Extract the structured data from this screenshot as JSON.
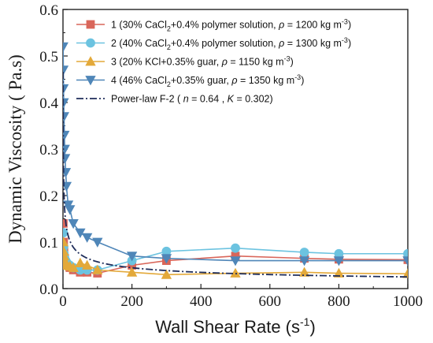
{
  "chart_data": {
    "type": "scatter",
    "xlabel": "Wall Shear Rate (s-1)",
    "xlabel_parts": {
      "main": "Wall Shear Rate (s",
      "sup": "-1",
      "close": ")"
    },
    "ylabel": "Dynamic Viscosity ( Pa.s)",
    "xlim": [
      0,
      1000
    ],
    "ylim": [
      0.0,
      0.6
    ],
    "xticks": [
      "0",
      "200",
      "400",
      "600",
      "800",
      "1000"
    ],
    "yticks": [
      "0.0",
      "0.1",
      "0.2",
      "0.3",
      "0.4",
      "0.5",
      "0.6"
    ],
    "legend_position": "top-right",
    "series": [
      {
        "name": "1 (30% CaCl2+0.4% polymer solution, ρ = 1200 kg m-3)",
        "legend_parts": {
          "pre": "1 (30% CaCl",
          "sub": "2",
          "mid": "+0.4% polymer solution, ",
          "rho": "ρ",
          "post": " = 1200 kg m",
          "sup": "-3",
          "close": ")"
        },
        "color": "#d9665a",
        "marker": "square",
        "x": [
          1,
          2,
          3,
          5,
          8,
          12,
          20,
          30,
          50,
          70,
          100,
          200,
          300,
          500,
          700,
          800,
          1000
        ],
        "y": [
          0.14,
          0.1,
          0.08,
          0.065,
          0.055,
          0.05,
          0.045,
          0.04,
          0.035,
          0.035,
          0.033,
          0.05,
          0.06,
          0.07,
          0.065,
          0.063,
          0.062
        ]
      },
      {
        "name": "2 (40% CaCl2+0.4% polymer solution, ρ = 1300 kg m-3)",
        "legend_parts": {
          "pre": "2 (40% CaCl",
          "sub": "2",
          "mid": "+0.4% polymer solution, ",
          "rho": "ρ",
          "post": " = 1300 kg m",
          "sup": "-3",
          "close": ")"
        },
        "color": "#6cc3e0",
        "marker": "circle",
        "x": [
          1,
          2,
          3,
          5,
          8,
          12,
          20,
          30,
          50,
          70,
          100,
          200,
          300,
          500,
          700,
          800,
          1000
        ],
        "y": [
          0.12,
          0.09,
          0.075,
          0.065,
          0.06,
          0.055,
          0.05,
          0.045,
          0.04,
          0.04,
          0.04,
          0.06,
          0.08,
          0.087,
          0.078,
          0.075,
          0.075
        ]
      },
      {
        "name": "3 (20% KCl+0.35% guar, ρ = 1150 kg m-3)",
        "legend_parts": {
          "pre": "3 (20% KCl+0.35% guar, ",
          "sub": "",
          "mid": "",
          "rho": "ρ",
          "post": " = 1150 kg m",
          "sup": "-3",
          "close": ")"
        },
        "color": "#e3a93a",
        "marker": "triangle-up",
        "x": [
          1,
          2,
          3,
          5,
          8,
          12,
          20,
          30,
          50,
          70,
          100,
          200,
          300,
          500,
          700,
          800,
          1000
        ],
        "y": [
          0.1,
          0.08,
          0.07,
          0.06,
          0.055,
          0.05,
          0.048,
          0.045,
          0.055,
          0.05,
          0.04,
          0.035,
          0.03,
          0.033,
          0.035,
          0.033,
          0.032
        ]
      },
      {
        "name": "4 (46% CaCl2+0.35% guar, ρ = 1350 kg m-3)",
        "legend_parts": {
          "pre": "4 (46% CaCl",
          "sub": "2",
          "mid": "+0.35% guar, ",
          "rho": "ρ",
          "post": " = 1350 kg m",
          "sup": "-3",
          "close": ")"
        },
        "color": "#4f86b8",
        "marker": "triangle-down",
        "x": [
          0.5,
          1,
          1.5,
          2,
          3,
          4,
          5,
          6,
          8,
          10,
          15,
          20,
          30,
          50,
          70,
          100,
          200,
          300,
          500,
          700,
          800,
          1000
        ],
        "y": [
          0.52,
          0.47,
          0.43,
          0.4,
          0.37,
          0.33,
          0.3,
          0.28,
          0.25,
          0.22,
          0.18,
          0.17,
          0.14,
          0.12,
          0.11,
          0.1,
          0.07,
          0.065,
          0.06,
          0.06,
          0.06,
          0.06
        ]
      },
      {
        "name": "Power-law F-2 ( n = 0.64 , K = 0.302)",
        "legend_parts": {
          "pre": "Power-law F-2 ( ",
          "n": "n",
          "mid": " = 0.64 , ",
          "k": "K",
          "post": " = 0.302)"
        },
        "color": "#1f2d5a",
        "marker": "none",
        "line_style": "dashdot",
        "n": 0.64,
        "K": 0.302
      }
    ]
  }
}
